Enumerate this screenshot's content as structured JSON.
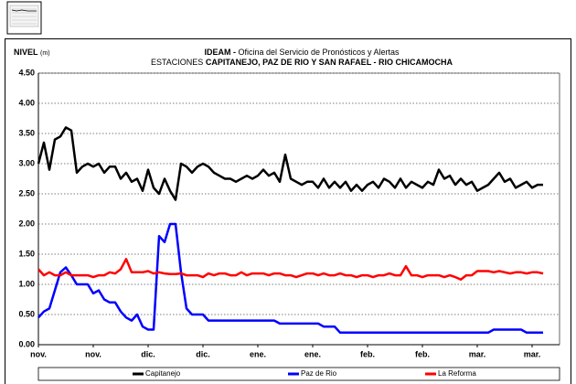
{
  "chart_data": {
    "type": "line",
    "title_bold": "IDEAM -",
    "title": "Oficina del Servicio de Pronósticos y Alertas",
    "subtitle_prefix": "ESTACIONES",
    "subtitle": "CAPITANEJO, PAZ DE RIO Y SAN RAFAEL -  RIO CHICAMOCHA",
    "ylabel": "NIVEL",
    "ylabel_unit": "(m)",
    "ylim": [
      0,
      4.5
    ],
    "yticks": [
      {
        "value": 0,
        "label": "0.00"
      },
      {
        "value": 0.5,
        "label": "0.50"
      },
      {
        "value": 1,
        "label": "1.00"
      },
      {
        "value": 1.5,
        "label": "1.50"
      },
      {
        "value": 2,
        "label": "2.00"
      },
      {
        "value": 2.5,
        "label": "2.50"
      },
      {
        "value": 3,
        "label": "3.00"
      },
      {
        "value": 3.5,
        "label": "3.50"
      },
      {
        "value": 4,
        "label": "4.00"
      },
      {
        "value": 4.5,
        "label": "4.50"
      }
    ],
    "grid": true,
    "legend": "bottom",
    "categories": [
      "nov.",
      null,
      null,
      null,
      null,
      null,
      null,
      null,
      null,
      null,
      "nov.",
      null,
      null,
      null,
      null,
      null,
      null,
      null,
      null,
      null,
      "dic.",
      null,
      null,
      null,
      null,
      null,
      null,
      null,
      null,
      null,
      "dic.",
      null,
      null,
      null,
      null,
      null,
      null,
      null,
      null,
      null,
      "ene.",
      null,
      null,
      null,
      null,
      null,
      null,
      null,
      null,
      null,
      "ene.",
      null,
      null,
      null,
      null,
      null,
      null,
      null,
      null,
      null,
      "feb.",
      null,
      null,
      null,
      null,
      null,
      null,
      null,
      null,
      null,
      "feb.",
      null,
      null,
      null,
      null,
      null,
      null,
      null,
      null,
      null,
      "mar.",
      null,
      null,
      null,
      null,
      null,
      null,
      null,
      null,
      null,
      "mar.",
      null,
      null
    ],
    "series": [
      {
        "name": "Capitanejo",
        "color": "#000000",
        "values": [
          3.0,
          3.35,
          2.9,
          3.4,
          3.45,
          3.6,
          3.55,
          2.85,
          2.95,
          3.0,
          2.95,
          3.0,
          2.85,
          2.95,
          2.95,
          2.75,
          2.85,
          2.7,
          2.75,
          2.55,
          2.9,
          2.6,
          2.5,
          2.75,
          2.55,
          2.4,
          3.0,
          2.95,
          2.85,
          2.95,
          3.0,
          2.95,
          2.85,
          2.8,
          2.75,
          2.75,
          2.7,
          2.75,
          2.8,
          2.75,
          2.8,
          2.9,
          2.8,
          2.85,
          2.7,
          3.15,
          2.75,
          2.7,
          2.65,
          2.7,
          2.7,
          2.6,
          2.75,
          2.6,
          2.7,
          2.6,
          2.7,
          2.55,
          2.65,
          2.55,
          2.65,
          2.7,
          2.6,
          2.75,
          2.7,
          2.6,
          2.75,
          2.6,
          2.7,
          2.65,
          2.6,
          2.7,
          2.65,
          2.9,
          2.75,
          2.8,
          2.65,
          2.75,
          2.65,
          2.7,
          2.55,
          2.6,
          2.65,
          2.75,
          2.85,
          2.7,
          2.75,
          2.6,
          2.65,
          2.7,
          2.6,
          2.65,
          2.65
        ]
      },
      {
        "name": "Paz de Rio",
        "color": "#0000ff",
        "values": [
          0.45,
          0.55,
          0.6,
          0.9,
          1.2,
          1.28,
          1.15,
          1.0,
          1.0,
          1.0,
          0.85,
          0.9,
          0.75,
          0.7,
          0.7,
          0.55,
          0.45,
          0.4,
          0.5,
          0.3,
          0.25,
          0.25,
          1.8,
          1.7,
          2.0,
          2.0,
          1.2,
          0.6,
          0.5,
          0.5,
          0.5,
          0.4,
          0.4,
          0.4,
          0.4,
          0.4,
          0.4,
          0.4,
          0.4,
          0.4,
          0.4,
          0.4,
          0.4,
          0.4,
          0.35,
          0.35,
          0.35,
          0.35,
          0.35,
          0.35,
          0.35,
          0.35,
          0.3,
          0.3,
          0.3,
          0.2,
          0.2,
          0.2,
          0.2,
          0.2,
          0.2,
          0.2,
          0.2,
          0.2,
          0.2,
          0.2,
          0.2,
          0.2,
          0.2,
          0.2,
          0.2,
          0.2,
          0.2,
          0.2,
          0.2,
          0.2,
          0.2,
          0.2,
          0.2,
          0.2,
          0.2,
          0.2,
          0.2,
          0.25,
          0.25,
          0.25,
          0.25,
          0.25,
          0.25,
          0.2,
          0.2,
          0.2,
          0.2
        ]
      },
      {
        "name": "La Reforma",
        "color": "#ff0000",
        "values": [
          1.25,
          1.15,
          1.2,
          1.15,
          1.15,
          1.2,
          1.15,
          1.15,
          1.15,
          1.15,
          1.12,
          1.15,
          1.15,
          1.2,
          1.18,
          1.25,
          1.42,
          1.2,
          1.2,
          1.2,
          1.22,
          1.18,
          1.2,
          1.18,
          1.17,
          1.17,
          1.18,
          1.15,
          1.15,
          1.15,
          1.12,
          1.18,
          1.15,
          1.18,
          1.18,
          1.15,
          1.15,
          1.2,
          1.15,
          1.18,
          1.18,
          1.18,
          1.15,
          1.18,
          1.18,
          1.15,
          1.15,
          1.12,
          1.15,
          1.18,
          1.18,
          1.15,
          1.18,
          1.15,
          1.15,
          1.18,
          1.15,
          1.15,
          1.12,
          1.15,
          1.15,
          1.12,
          1.15,
          1.15,
          1.18,
          1.15,
          1.15,
          1.3,
          1.15,
          1.15,
          1.12,
          1.15,
          1.15,
          1.15,
          1.12,
          1.15,
          1.12,
          1.08,
          1.15,
          1.15,
          1.22,
          1.22,
          1.22,
          1.2,
          1.22,
          1.2,
          1.18,
          1.2,
          1.2,
          1.18,
          1.2,
          1.2,
          1.18
        ]
      }
    ]
  }
}
